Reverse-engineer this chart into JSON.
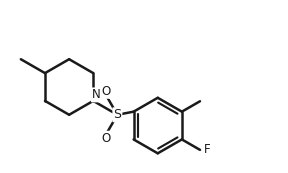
{
  "bg_color": "#ffffff",
  "line_color": "#1a1a1a",
  "line_width": 1.8,
  "font_size": 8.5,
  "figsize": [
    2.88,
    1.73
  ],
  "dpi": 100,
  "xlim": [
    0,
    1
  ],
  "ylim": [
    0,
    1
  ]
}
